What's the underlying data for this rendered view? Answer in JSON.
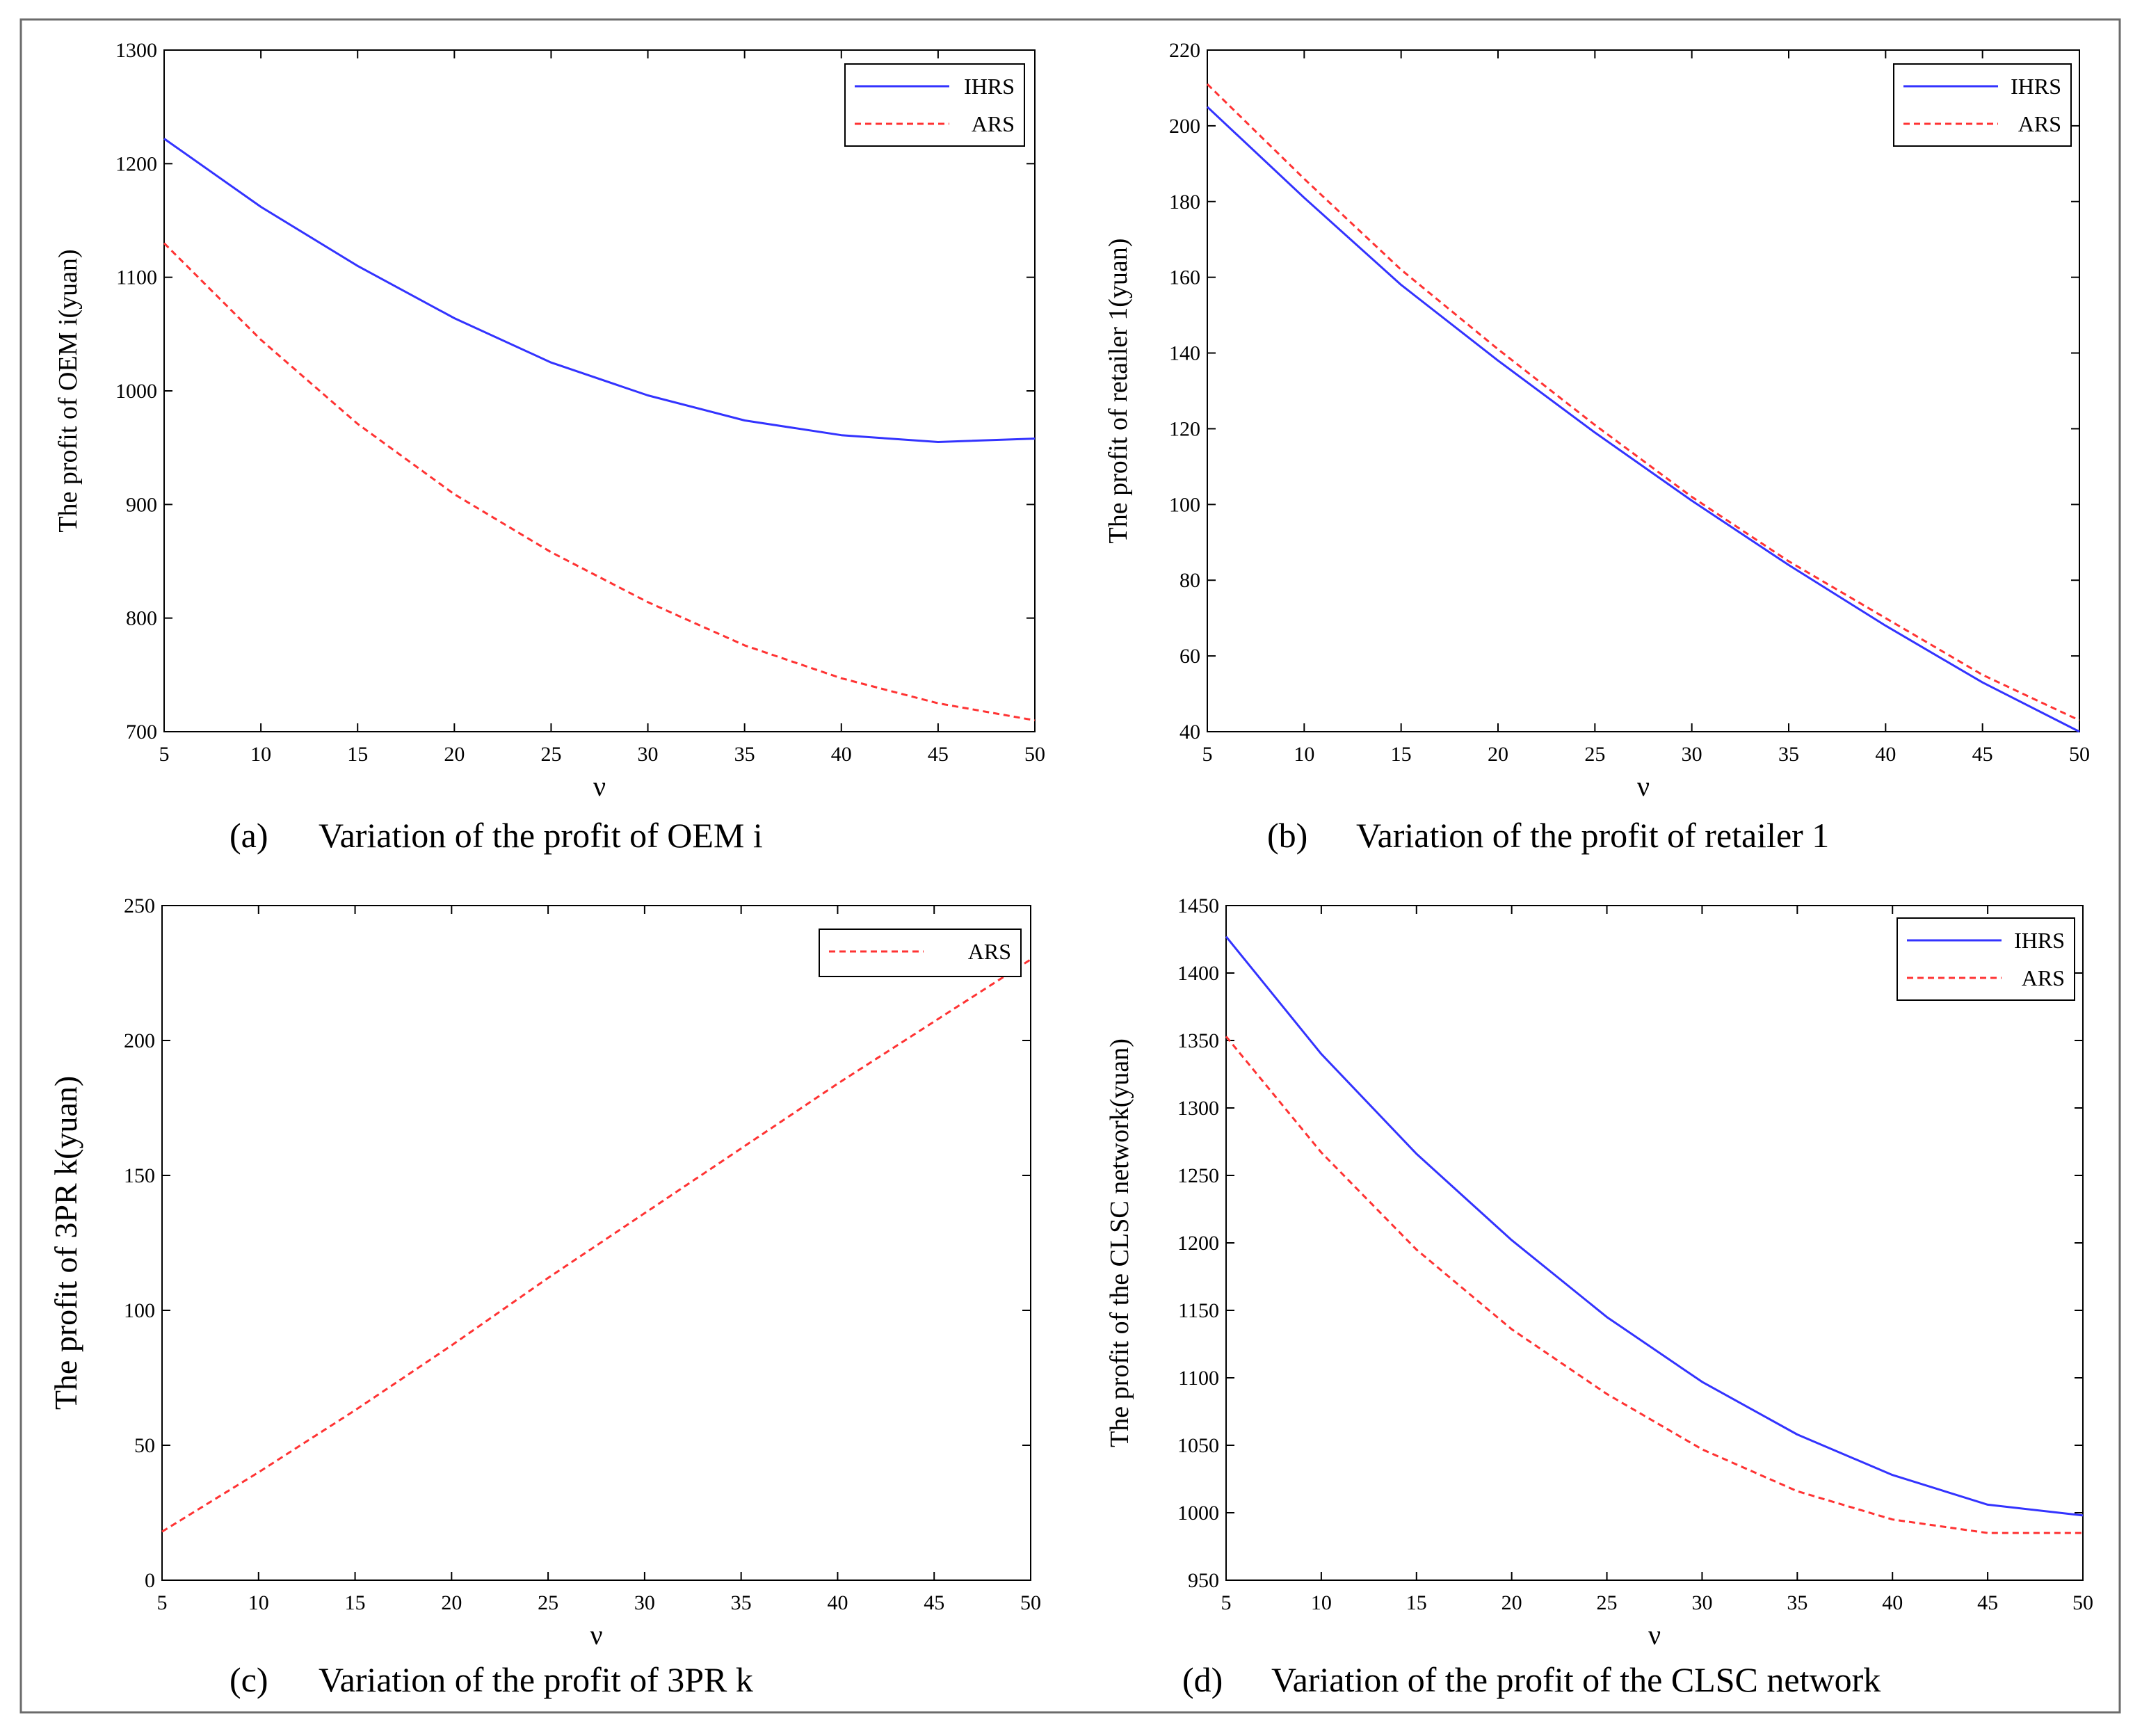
{
  "figure": {
    "colors": {
      "ihrs": "#3333ff",
      "ars": "#ff3333",
      "axis": "#000000"
    }
  },
  "chart_data": [
    {
      "id": "a",
      "type": "line",
      "caption_letter": "(a)",
      "caption_text": "Variation of the profit of OEM i",
      "xlabel": "ν",
      "ylabel": "The profit of OEM i(yuan)",
      "xlim": [
        5,
        50
      ],
      "ylim": [
        700,
        1300
      ],
      "xticks": [
        5,
        10,
        15,
        20,
        25,
        30,
        35,
        40,
        45,
        50
      ],
      "yticks": [
        700,
        800,
        900,
        1000,
        1100,
        1200,
        1300
      ],
      "x": [
        5,
        10,
        15,
        20,
        25,
        30,
        35,
        40,
        45,
        50
      ],
      "series": [
        {
          "name": "IHRS",
          "style": "solid",
          "values": [
            1222,
            1162,
            1110,
            1064,
            1025,
            996,
            974,
            961,
            955,
            958
          ]
        },
        {
          "name": "ARS",
          "style": "dashed",
          "values": [
            1130,
            1045,
            971,
            909,
            858,
            814,
            776,
            747,
            725,
            710
          ]
        }
      ],
      "legend": [
        "IHRS",
        "ARS"
      ]
    },
    {
      "id": "b",
      "type": "line",
      "caption_letter": "(b)",
      "caption_text": "Variation of the profit of retailer 1",
      "xlabel": "ν",
      "ylabel": "The profit of retailer 1(yuan)",
      "xlim": [
        5,
        50
      ],
      "ylim": [
        40,
        220
      ],
      "xticks": [
        5,
        10,
        15,
        20,
        25,
        30,
        35,
        40,
        45,
        50
      ],
      "yticks": [
        40,
        60,
        80,
        100,
        120,
        140,
        160,
        180,
        200,
        220
      ],
      "x": [
        5,
        10,
        15,
        20,
        25,
        30,
        35,
        40,
        45,
        50
      ],
      "series": [
        {
          "name": "IHRS",
          "style": "solid",
          "values": [
            205,
            181,
            158,
            138,
            119,
            101,
            84,
            68,
            53,
            40
          ]
        },
        {
          "name": "ARS",
          "style": "dashed",
          "values": [
            211,
            186,
            162,
            141,
            121,
            102,
            85,
            70,
            55,
            43
          ]
        }
      ],
      "legend": [
        "IHRS",
        "ARS"
      ]
    },
    {
      "id": "c",
      "type": "line",
      "caption_letter": "(c)",
      "caption_text": "Variation of the profit of 3PR k",
      "xlabel": "ν",
      "ylabel": "The profit of 3PR k(yuan)",
      "xlim": [
        5,
        50
      ],
      "ylim": [
        0,
        250
      ],
      "xticks": [
        5,
        10,
        15,
        20,
        25,
        30,
        35,
        40,
        45,
        50
      ],
      "yticks": [
        0,
        50,
        100,
        150,
        200,
        250
      ],
      "x": [
        5,
        10,
        15,
        20,
        25,
        30,
        35,
        40,
        45,
        50
      ],
      "series": [
        {
          "name": "ARS",
          "style": "dashed",
          "values": [
            18,
            40,
            63,
            87,
            112,
            136,
            160,
            184,
            207,
            230
          ]
        }
      ],
      "legend": [
        "ARS"
      ]
    },
    {
      "id": "d",
      "type": "line",
      "caption_letter": "(d)",
      "caption_text": "Variation of the profit of the CLSC network",
      "xlabel": "ν",
      "ylabel": "The profit of the CLSC network(yuan)",
      "xlim": [
        5,
        50
      ],
      "ylim": [
        950,
        1450
      ],
      "xticks": [
        5,
        10,
        15,
        20,
        25,
        30,
        35,
        40,
        45,
        50
      ],
      "yticks": [
        950,
        1000,
        1050,
        1100,
        1150,
        1200,
        1250,
        1300,
        1350,
        1400,
        1450
      ],
      "x": [
        5,
        10,
        15,
        20,
        25,
        30,
        35,
        40,
        45,
        50
      ],
      "series": [
        {
          "name": "IHRS",
          "style": "solid",
          "values": [
            1427,
            1340,
            1266,
            1202,
            1145,
            1097,
            1058,
            1028,
            1006,
            998
          ]
        },
        {
          "name": "ARS",
          "style": "dashed",
          "values": [
            1353,
            1267,
            1195,
            1136,
            1088,
            1047,
            1016,
            995,
            985,
            985
          ]
        }
      ],
      "legend": [
        "IHRS",
        "ARS"
      ]
    }
  ]
}
